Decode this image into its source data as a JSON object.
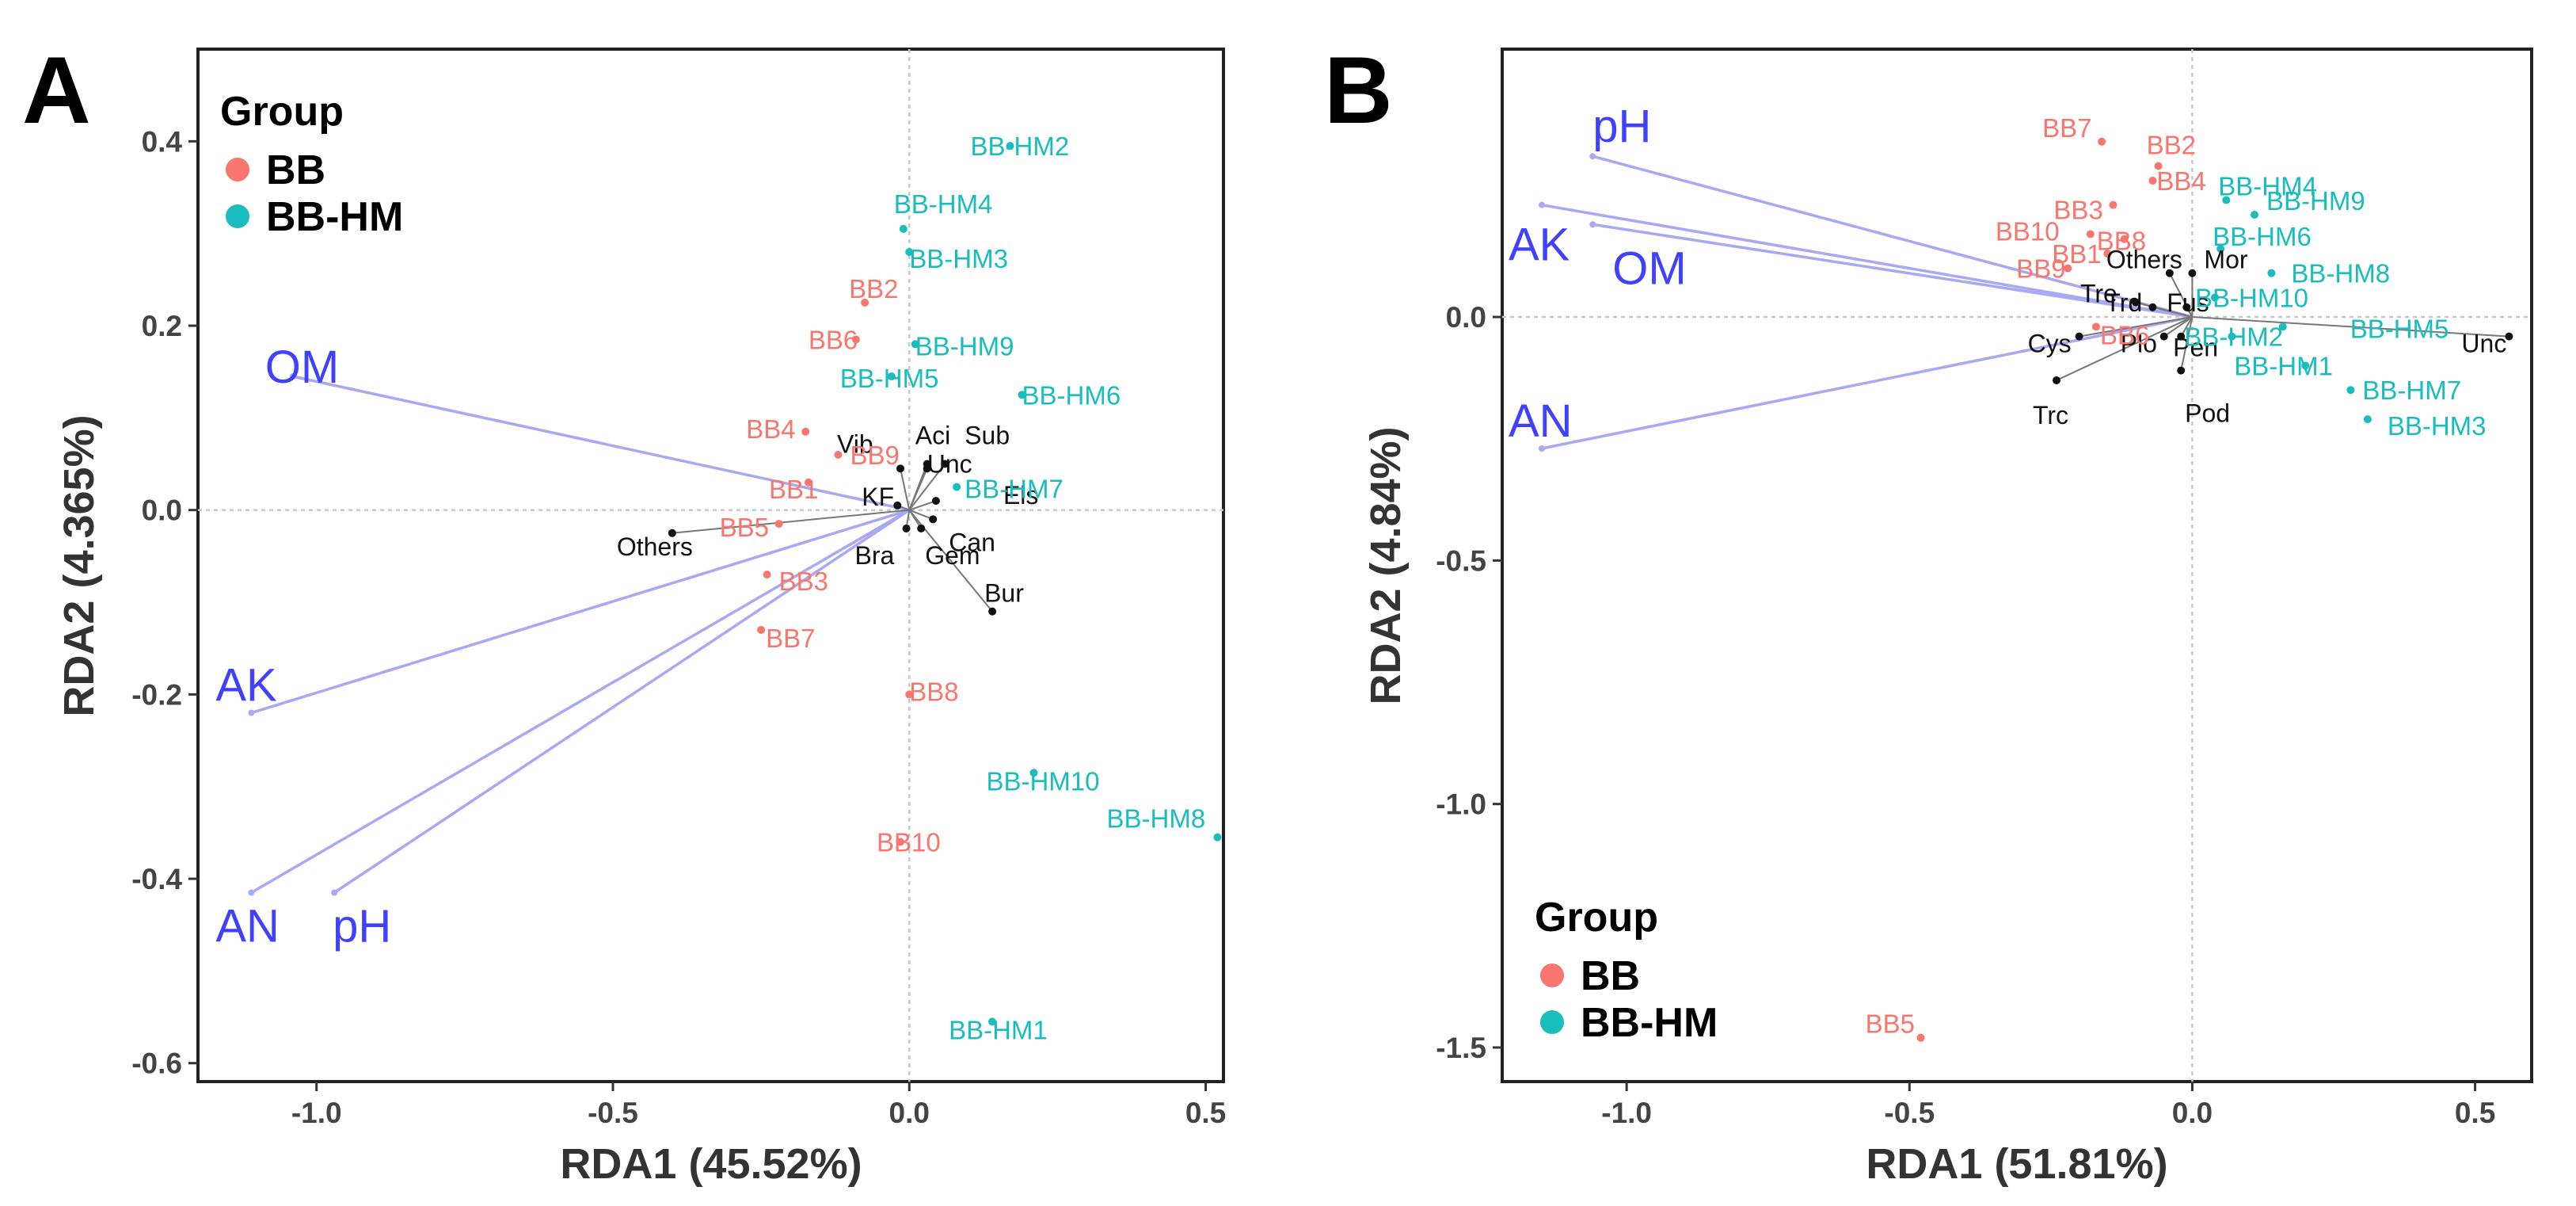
{
  "chart_data": [
    {
      "panel": "A",
      "type": "scatter",
      "subtype": "RDA biplot",
      "xlabel": "RDA1 (45.52%)",
      "ylabel": "RDA2 (4.365%)",
      "xlim": [
        -1.2,
        0.53
      ],
      "ylim": [
        -0.62,
        0.5
      ],
      "xticks": [
        -1.0,
        -0.5,
        0.0,
        0.5
      ],
      "yticks": [
        -0.6,
        -0.4,
        -0.2,
        0.0,
        0.2,
        0.4
      ],
      "xtick_labels": [
        "-1.0",
        "-0.5",
        "0.0",
        "0.5"
      ],
      "ytick_labels": [
        "-0.6",
        "-0.4",
        "-0.2",
        "0.0",
        "0.2",
        "0.4"
      ],
      "legend": {
        "title": "Group",
        "position": "top-left",
        "entries": [
          {
            "label": "BB",
            "color": "#f8766d"
          },
          {
            "label": "BB-HM",
            "color": "#19bdbd"
          }
        ]
      },
      "env_vectors": [
        {
          "name": "OM",
          "x": -1.04,
          "y": 0.145
        },
        {
          "name": "AK",
          "x": -1.11,
          "y": -0.22
        },
        {
          "name": "AN",
          "x": -1.11,
          "y": -0.415
        },
        {
          "name": "pH",
          "x": -0.97,
          "y": -0.415
        }
      ],
      "sites": [
        {
          "label": "BB-HM2",
          "group": "BB-HM",
          "x": 0.17,
          "y": 0.395
        },
        {
          "label": "BB-HM4",
          "group": "BB-HM",
          "x": -0.01,
          "y": 0.305
        },
        {
          "label": "BB-HM3",
          "group": "BB-HM",
          "x": 0.0,
          "y": 0.28
        },
        {
          "label": "BB-HM9",
          "group": "BB-HM",
          "x": 0.01,
          "y": 0.18
        },
        {
          "label": "BB-HM6",
          "group": "BB-HM",
          "x": 0.19,
          "y": 0.125
        },
        {
          "label": "BB-HM5",
          "group": "BB-HM",
          "x": -0.03,
          "y": 0.145
        },
        {
          "label": "BB-HM7",
          "group": "BB-HM",
          "x": 0.08,
          "y": 0.025
        },
        {
          "label": "BB-HM10",
          "group": "BB-HM",
          "x": 0.21,
          "y": -0.285
        },
        {
          "label": "BB-HM8",
          "group": "BB-HM",
          "x": 0.52,
          "y": -0.355
        },
        {
          "label": "BB-HM1",
          "group": "BB-HM",
          "x": 0.14,
          "y": -0.555
        },
        {
          "label": "BB2",
          "group": "BB",
          "x": -0.075,
          "y": 0.225
        },
        {
          "label": "BB6",
          "group": "BB",
          "x": -0.09,
          "y": 0.185
        },
        {
          "label": "BB4",
          "group": "BB",
          "x": -0.175,
          "y": 0.085
        },
        {
          "label": "BB9",
          "group": "BB",
          "x": -0.12,
          "y": 0.06
        },
        {
          "label": "BB1",
          "group": "BB",
          "x": -0.17,
          "y": 0.03
        },
        {
          "label": "BB5",
          "group": "BB",
          "x": -0.22,
          "y": -0.015
        },
        {
          "label": "BB3",
          "group": "BB",
          "x": -0.24,
          "y": -0.07
        },
        {
          "label": "BB7",
          "group": "BB",
          "x": -0.25,
          "y": -0.13
        },
        {
          "label": "BB8",
          "group": "BB",
          "x": 0.0,
          "y": -0.2
        },
        {
          "label": "BB10",
          "group": "BB",
          "x": -0.015,
          "y": -0.36
        }
      ],
      "species": [
        {
          "label": "Vib",
          "x": -0.015,
          "y": 0.045
        },
        {
          "label": "Aci",
          "x": 0.03,
          "y": 0.05
        },
        {
          "label": "Sub",
          "x": 0.06,
          "y": 0.05
        },
        {
          "label": "Unc",
          "x": 0.03,
          "y": 0.045
        },
        {
          "label": "KF",
          "x": -0.02,
          "y": 0.005
        },
        {
          "label": "Els",
          "x": 0.045,
          "y": 0.01
        },
        {
          "label": "Can",
          "x": 0.04,
          "y": -0.01
        },
        {
          "label": "Bra",
          "x": -0.005,
          "y": -0.02
        },
        {
          "label": "Gem",
          "x": 0.02,
          "y": -0.02
        },
        {
          "label": "Others",
          "x": -0.4,
          "y": -0.025
        },
        {
          "label": "Bur",
          "x": 0.14,
          "y": -0.11
        }
      ]
    },
    {
      "panel": "B",
      "type": "scatter",
      "subtype": "RDA biplot",
      "xlabel": "RDA1 (51.81%)",
      "ylabel": "RDA2 (4.84%)",
      "xlim": [
        -1.22,
        0.6
      ],
      "ylim": [
        -1.57,
        0.55
      ],
      "xticks": [
        -1.0,
        -0.5,
        0.0,
        0.5
      ],
      "yticks": [
        -1.5,
        -1.0,
        -0.5,
        0.0
      ],
      "xtick_labels": [
        "-1.0",
        "-0.5",
        "0.0",
        "0.5"
      ],
      "ytick_labels": [
        "-1.5",
        "-1.0",
        "-0.5",
        "0.0"
      ],
      "legend": {
        "title": "Group",
        "position": "bottom-left",
        "entries": [
          {
            "label": "BB",
            "color": "#f8766d"
          },
          {
            "label": "BB-HM",
            "color": "#19bdbd"
          }
        ]
      },
      "env_vectors": [
        {
          "name": "pH",
          "x": -1.06,
          "y": 0.33
        },
        {
          "name": "AK",
          "x": -1.15,
          "y": 0.23
        },
        {
          "name": "OM",
          "x": -1.06,
          "y": 0.19
        },
        {
          "name": "AN",
          "x": -1.15,
          "y": -0.27
        }
      ],
      "sites": [
        {
          "label": "BB7",
          "group": "BB",
          "x": -0.16,
          "y": 0.36
        },
        {
          "label": "BB2",
          "group": "BB",
          "x": -0.06,
          "y": 0.31
        },
        {
          "label": "BB4",
          "group": "BB",
          "x": -0.07,
          "y": 0.28
        },
        {
          "label": "BB3",
          "group": "BB",
          "x": -0.14,
          "y": 0.23
        },
        {
          "label": "BB10",
          "group": "BB",
          "x": -0.18,
          "y": 0.17
        },
        {
          "label": "BB8",
          "group": "BB",
          "x": -0.12,
          "y": 0.16
        },
        {
          "label": "BB1",
          "group": "BB",
          "x": -0.15,
          "y": 0.13
        },
        {
          "label": "BB9",
          "group": "BB",
          "x": -0.22,
          "y": 0.1
        },
        {
          "label": "BB6",
          "group": "BB",
          "x": -0.17,
          "y": -0.02
        },
        {
          "label": "BB5",
          "group": "BB",
          "x": -0.48,
          "y": -1.48
        },
        {
          "label": "BB-HM4",
          "group": "BB-HM",
          "x": 0.06,
          "y": 0.24
        },
        {
          "label": "BB-HM9",
          "group": "BB-HM",
          "x": 0.11,
          "y": 0.21
        },
        {
          "label": "BB-HM6",
          "group": "BB-HM",
          "x": 0.05,
          "y": 0.14
        },
        {
          "label": "BB-HM8",
          "group": "BB-HM",
          "x": 0.14,
          "y": 0.09
        },
        {
          "label": "BB-HM10",
          "group": "BB-HM",
          "x": 0.04,
          "y": 0.04
        },
        {
          "label": "BB-HM5",
          "group": "BB-HM",
          "x": 0.16,
          "y": -0.02
        },
        {
          "label": "BB-HM2",
          "group": "BB-HM",
          "x": 0.07,
          "y": -0.04
        },
        {
          "label": "BB-HM1",
          "group": "BB-HM",
          "x": 0.2,
          "y": -0.1
        },
        {
          "label": "BB-HM7",
          "group": "BB-HM",
          "x": 0.28,
          "y": -0.15
        },
        {
          "label": "BB-HM3",
          "group": "BB-HM",
          "x": 0.31,
          "y": -0.21
        }
      ],
      "species": [
        {
          "label": "Others",
          "x": -0.04,
          "y": 0.09
        },
        {
          "label": "Mor",
          "x": 0.0,
          "y": 0.09
        },
        {
          "label": "Tre",
          "x": -0.1,
          "y": 0.03
        },
        {
          "label": "Trd",
          "x": -0.07,
          "y": 0.02
        },
        {
          "label": "Fus",
          "x": -0.01,
          "y": 0.02
        },
        {
          "label": "Cys",
          "x": -0.2,
          "y": -0.04
        },
        {
          "label": "Plo",
          "x": -0.05,
          "y": -0.04
        },
        {
          "label": "Pen",
          "x": -0.02,
          "y": -0.04
        },
        {
          "label": "Trc",
          "x": -0.24,
          "y": -0.13
        },
        {
          "label": "Pod",
          "x": -0.02,
          "y": -0.11
        },
        {
          "label": "Unc",
          "x": 0.56,
          "y": -0.04
        }
      ]
    }
  ]
}
